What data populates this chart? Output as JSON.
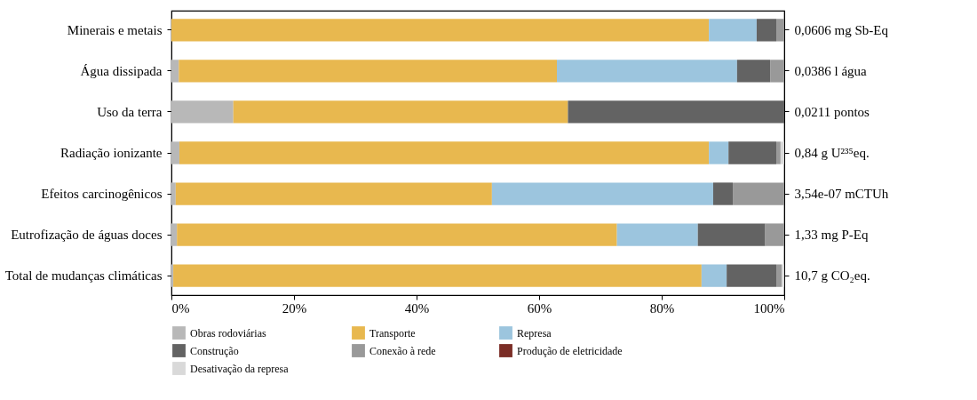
{
  "chart_data": {
    "type": "bar",
    "orientation": "horizontal",
    "stacked": true,
    "categories": [
      "Minerais e metais",
      "Água dissipada",
      "Uso da terra",
      "Radiação ionizante",
      "Efeitos carcinogênicos",
      "Eutrofização de águas doces",
      "Total de mudanças climáticas"
    ],
    "y2_categories": [
      "0,0606 mg Sb-Eq",
      "0,0386 l água",
      "0,0211 pontos",
      "0,84 g U²³⁵eq.",
      "3,54e-07 mCTUh",
      "1,33 mg P-Eq",
      "10,7 g CO₂eq."
    ],
    "series": [
      {
        "name": "Obras rodoviárias",
        "color": "#b8b8b8",
        "values": [
          0,
          1.2,
          10.1,
          1.3,
          0.7,
          0.9,
          0.3
        ]
      },
      {
        "name": "Transporte",
        "color": "#e8b84f",
        "values": [
          87.7,
          61.7,
          54.6,
          86.4,
          51.6,
          71.8,
          86.2
        ]
      },
      {
        "name": "Represa",
        "color": "#9cc5de",
        "values": [
          7.8,
          29.4,
          0,
          3.2,
          36.1,
          13.2,
          4.1
        ]
      },
      {
        "name": "Construção",
        "color": "#636363",
        "values": [
          3.2,
          5.4,
          35.3,
          7.8,
          3.2,
          11.0,
          8.1
        ]
      },
      {
        "name": "Conexão à rede",
        "color": "#999999",
        "values": [
          1.3,
          2.3,
          0,
          0.7,
          8.4,
          3.1,
          0.9
        ]
      },
      {
        "name": "Produção de eletricidade",
        "color": "#7b2d26",
        "values": [
          0,
          0,
          0,
          0,
          0,
          0,
          0
        ]
      },
      {
        "name": "Desativação da represa",
        "color": "#d9d9d9",
        "values": [
          0,
          0,
          0,
          0.6,
          0,
          0,
          0.4
        ]
      }
    ],
    "xlim": [
      0,
      100
    ],
    "xticks": [
      {
        "value": 0,
        "label": "0%"
      },
      {
        "value": 20,
        "label": "20%"
      },
      {
        "value": 40,
        "label": "40%"
      },
      {
        "value": 60,
        "label": "60%"
      },
      {
        "value": 80,
        "label": "80%"
      },
      {
        "value": 100,
        "label": "100%"
      }
    ],
    "grid": false,
    "legend": "bottom"
  }
}
